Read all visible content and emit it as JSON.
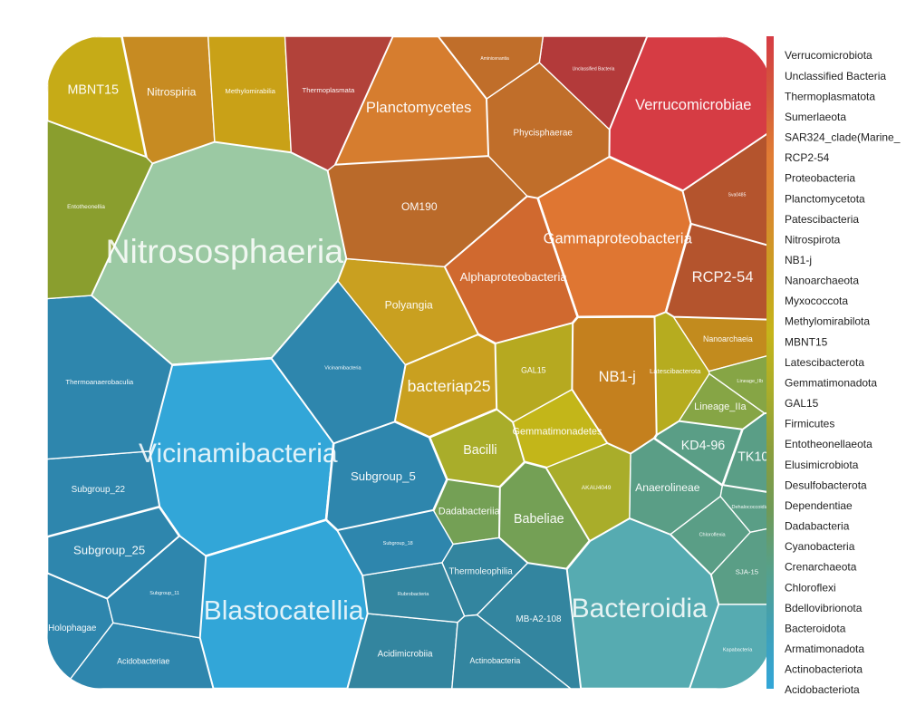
{
  "chart_data": {
    "type": "voronoi-treemap",
    "title": "",
    "legend": {
      "placement": "right",
      "items": [
        "Verrucomicrobiota",
        "Unclassified Bacteria",
        "Thermoplasmatota",
        "Sumerlaeota",
        "SAR324_clade(Marine_",
        "RCP2-54",
        "Proteobacteria",
        "Planctomycetota",
        "Patescibacteria",
        "Nitrospirota",
        "NB1-j",
        "Nanoarchaeota",
        "Myxococcota",
        "Methylomirabilota",
        "MBNT15",
        "Latescibacterota",
        "Gemmatimonadota",
        "GAL15",
        "Firmicutes",
        "Entotheonellaeota",
        "Elusimicrobiota",
        "Desulfobacterota",
        "Dependentiae",
        "Dadabacteria",
        "Cyanobacteria",
        "Crenarchaeota",
        "Chloroflexi",
        "Bdellovibrionota",
        "Bacteroidota",
        "Armatimonadota",
        "Actinobacteriota",
        "Acidobacteriota"
      ],
      "gradient": [
        "#d63c44",
        "#d45a3a",
        "#e07c34",
        "#d98a2e",
        "#c9a020",
        "#c6b41a",
        "#a9ad2a",
        "#8a9e3e",
        "#6f9a58",
        "#56a08a",
        "#3fa0b8",
        "#32a6d8"
      ]
    },
    "cells": [
      {
        "label": "Nitrososphaeria",
        "phylum": "Crenarchaeota",
        "color": "#9bc9a3",
        "size": 30
      },
      {
        "label": "Vicinamibacteria",
        "phylum": "Acidobacteriota",
        "color": "#32a6d8",
        "size": 24
      },
      {
        "label": "Blastocatellia",
        "phylum": "Acidobacteriota",
        "color": "#32a6d8",
        "size": 24
      },
      {
        "label": "Bacteroidia",
        "phylum": "Bacteroidota",
        "color": "#56abb1",
        "size": 24
      },
      {
        "label": "Planctomycetes",
        "phylum": "Planctomycetota",
        "color": "#d67d2f",
        "size": 15
      },
      {
        "label": "Verrucomicrobiae",
        "phylum": "Verrucomicrobiota",
        "color": "#d63c44",
        "size": 15
      },
      {
        "label": "Gammaproteobacteria",
        "phylum": "Proteobacteria",
        "color": "#df7632",
        "size": 15
      },
      {
        "label": "Alphaproteobacteria",
        "phylum": "Proteobacteria",
        "color": "#d0692f",
        "size": 12
      },
      {
        "label": "bacteriap25",
        "phylum": "Myxococcota",
        "color": "#c9a020",
        "size": 16
      },
      {
        "label": "RCP2-54",
        "phylum": "RCP2-54",
        "color": "#b4542d",
        "size": 15
      },
      {
        "label": "NB1-j",
        "phylum": "NB1-j",
        "color": "#c4801e",
        "size": 15
      },
      {
        "label": "Polyangia",
        "phylum": "Myxococcota",
        "color": "#c9a020",
        "size": 11
      },
      {
        "label": "Bacilli",
        "phylum": "Firmicutes",
        "color": "#a9ad2a",
        "size": 13
      },
      {
        "label": "Gemmatimonadetes",
        "phylum": "Gemmatimonadota",
        "color": "#c3b619",
        "size": 10
      },
      {
        "label": "Babeliae",
        "phylum": "Dependentiae",
        "color": "#74a055",
        "size": 13
      },
      {
        "label": "Dadabacteriia",
        "phylum": "Dadabacteria",
        "color": "#74a055",
        "size": 10
      },
      {
        "label": "Anaerolineae",
        "phylum": "Chloroflexi",
        "color": "#5a9e86",
        "size": 11
      },
      {
        "label": "KD4-96",
        "phylum": "Chloroflexi",
        "color": "#5a9e86",
        "size": 13
      },
      {
        "label": "TK10",
        "phylum": "Chloroflexi",
        "color": "#5a9e86",
        "size": 13
      },
      {
        "label": "Lineage_IIa",
        "phylum": "Elusimicrobiota",
        "color": "#86a545",
        "size": 10
      },
      {
        "label": "Latescibacterota",
        "phylum": "Latescibacterota",
        "color": "#b6ac1f",
        "size": 7
      },
      {
        "label": "Nanoarchaeia",
        "phylum": "Nanoarchaeota",
        "color": "#c28b1e",
        "size": 8
      },
      {
        "label": "GAL15",
        "phylum": "GAL15",
        "color": "#b6a920",
        "size": 8
      },
      {
        "label": "OM190",
        "phylum": "Planctomycetota",
        "color": "#ba6a2a",
        "size": 11
      },
      {
        "label": "Phycisphaerae",
        "phylum": "Planctomycetota",
        "color": "#c06e2a",
        "size": 9
      },
      {
        "label": "Nitrospiria",
        "phylum": "Nitrospirota",
        "color": "#c78b22",
        "size": 11
      },
      {
        "label": "MBNT15",
        "phylum": "MBNT15",
        "color": "#c6ab17",
        "size": 13
      },
      {
        "label": "Methylomirabilia",
        "phylum": "Methylomirabilota",
        "color": "#c9a117",
        "size": 7
      },
      {
        "label": "Thermoplasmata",
        "phylum": "Thermoplasmatota",
        "color": "#b2423a",
        "size": 7
      },
      {
        "label": "Subgroup_22",
        "phylum": "Acidobacteriota",
        "color": "#2e86ad",
        "size": 9
      },
      {
        "label": "Subgroup_25",
        "phylum": "Acidobacteriota",
        "color": "#2e86ad",
        "size": 12
      },
      {
        "label": "Thermoanaerobaculia",
        "phylum": "Acidobacteriota",
        "color": "#2e86ad",
        "size": 7
      },
      {
        "label": "Holophagae",
        "phylum": "Acidobacteriota",
        "color": "#2e86ad",
        "size": 9
      },
      {
        "label": "Acidobacteriae",
        "phylum": "Acidobacteriota",
        "color": "#2e86ad",
        "size": 8
      },
      {
        "label": "Subgroup_5",
        "phylum": "Acidobacteriota",
        "color": "#2e86ad",
        "size": 12
      },
      {
        "label": "Thermoleophilia",
        "phylum": "Actinobacteriota",
        "color": "#33859f",
        "size": 9
      },
      {
        "label": "MB-A2-108",
        "phylum": "Actinobacteriota",
        "color": "#33859f",
        "size": 9
      },
      {
        "label": "Acidimicrobiia",
        "phylum": "Actinobacteriota",
        "color": "#33859f",
        "size": 9
      },
      {
        "label": "Actinobacteria",
        "phylum": "Actinobacteriota",
        "color": "#33859f",
        "size": 8
      },
      {
        "label": "Rubrobacteria",
        "phylum": "Actinobacteriota",
        "color": "#33859f",
        "size": 5
      },
      {
        "label": "AKAU4049",
        "phylum": "Gemmatimonadota",
        "color": "#a9ad2a",
        "size": 6
      },
      {
        "label": "Subgroup_18",
        "phylum": "Acidobacteriota",
        "color": "#2e86ad",
        "size": 5
      },
      {
        "label": "Subgroup_11",
        "phylum": "Acidobacteriota",
        "color": "#2e86ad",
        "size": 5
      },
      {
        "label": "Chloroflexia",
        "phylum": "Chloroflexi",
        "color": "#5a9e86",
        "size": 5
      },
      {
        "label": "Dehalococcoidia",
        "phylum": "Chloroflexi",
        "color": "#5a9e86",
        "size": 5
      },
      {
        "label": "Lineage_IIb",
        "phylum": "Elusimicrobiota",
        "color": "#86a545",
        "size": 5
      },
      {
        "label": "Entotheonellia",
        "phylum": "Entotheonellaeota",
        "color": "#8a9e2e",
        "size": 6
      },
      {
        "label": "Unclassified Bacteria",
        "phylum": "Unclassified Bacteria",
        "color": "#b33a3a",
        "size": 4
      },
      {
        "label": "Vicinamibacteria",
        "phylum": "Acidobacteriota",
        "color": "#2e86ad",
        "size": 5
      },
      {
        "label": "SJA-15",
        "phylum": "Chloroflexi",
        "color": "#5a9e86",
        "size": 7
      },
      {
        "label": "Kapabacteria",
        "phylum": "Bacteroidota",
        "color": "#56abb1",
        "size": 5
      },
      {
        "label": "Sva0485",
        "phylum": "Desulfobacterota",
        "color": "#b4542d",
        "size": 4
      },
      {
        "label": "Aminicenantia",
        "phylum": "Acidobacteriota",
        "color": "#c06e2a",
        "size": 4
      }
    ]
  }
}
